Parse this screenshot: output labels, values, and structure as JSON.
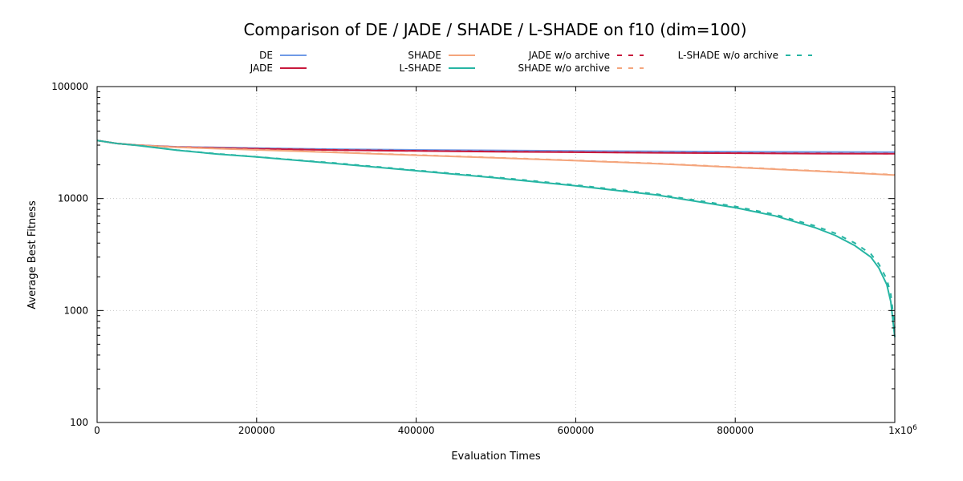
{
  "chart_data": {
    "type": "line",
    "title": "Comparison of DE / JADE / SHADE / L-SHADE on f10 (dim=100)",
    "xlabel": "Evaluation Times",
    "ylabel": "Average Best Fitness",
    "xlim": [
      0,
      1000000
    ],
    "ylim": [
      100,
      100000
    ],
    "yscale": "log",
    "grid": true,
    "legend_position": "top",
    "x_ticks": [
      "0",
      "200000",
      "400000",
      "600000",
      "800000"
    ],
    "x_tick_last": {
      "base": "1x10",
      "exp": "6"
    },
    "y_ticks": [
      "100",
      "1000",
      "10000",
      "100000"
    ],
    "series": [
      {
        "name": "DE",
        "color": "#6f9ae6",
        "style": "solid",
        "points": [
          [
            0,
            33000
          ],
          [
            25000,
            31000
          ],
          [
            50000,
            30000
          ],
          [
            100000,
            29000
          ],
          [
            200000,
            28200
          ],
          [
            300000,
            27600
          ],
          [
            400000,
            27200
          ],
          [
            500000,
            26900
          ],
          [
            600000,
            26600
          ],
          [
            700000,
            26400
          ],
          [
            800000,
            26200
          ],
          [
            900000,
            26100
          ],
          [
            1000000,
            26000
          ]
        ]
      },
      {
        "name": "JADE",
        "color": "#c8193c",
        "style": "solid",
        "points": [
          [
            0,
            33000
          ],
          [
            25000,
            31000
          ],
          [
            50000,
            30000
          ],
          [
            100000,
            28800
          ],
          [
            200000,
            27800
          ],
          [
            300000,
            27100
          ],
          [
            400000,
            26600
          ],
          [
            500000,
            26200
          ],
          [
            600000,
            25900
          ],
          [
            700000,
            25600
          ],
          [
            800000,
            25400
          ],
          [
            900000,
            25200
          ],
          [
            1000000,
            25100
          ]
        ]
      },
      {
        "name": "SHADE",
        "color": "#f4a57c",
        "style": "solid",
        "points": [
          [
            0,
            33000
          ],
          [
            25000,
            31000
          ],
          [
            50000,
            30000
          ],
          [
            100000,
            28700
          ],
          [
            200000,
            27200
          ],
          [
            300000,
            25800
          ],
          [
            400000,
            24400
          ],
          [
            500000,
            23100
          ],
          [
            600000,
            21800
          ],
          [
            700000,
            20500
          ],
          [
            800000,
            19000
          ],
          [
            900000,
            17600
          ],
          [
            1000000,
            16200
          ]
        ]
      },
      {
        "name": "L-SHADE",
        "color": "#26b5a3",
        "style": "solid",
        "points": [
          [
            0,
            33000
          ],
          [
            25000,
            31000
          ],
          [
            50000,
            29800
          ],
          [
            100000,
            27000
          ],
          [
            150000,
            25000
          ],
          [
            200000,
            23500
          ],
          [
            300000,
            20500
          ],
          [
            400000,
            17700
          ],
          [
            500000,
            15300
          ],
          [
            600000,
            13000
          ],
          [
            700000,
            10800
          ],
          [
            800000,
            8300
          ],
          [
            850000,
            7000
          ],
          [
            900000,
            5500
          ],
          [
            925000,
            4700
          ],
          [
            950000,
            3800
          ],
          [
            970000,
            3000
          ],
          [
            980000,
            2400
          ],
          [
            990000,
            1700
          ],
          [
            995000,
            1200
          ],
          [
            1000000,
            580
          ]
        ]
      },
      {
        "name": "JADE w/o archive",
        "color": "#c8193c",
        "style": "dashed",
        "points": [
          [
            0,
            33000
          ],
          [
            25000,
            31000
          ],
          [
            50000,
            30000
          ],
          [
            100000,
            28900
          ],
          [
            200000,
            27900
          ],
          [
            300000,
            27200
          ],
          [
            400000,
            26700
          ],
          [
            500000,
            26300
          ],
          [
            600000,
            26000
          ],
          [
            700000,
            25700
          ],
          [
            800000,
            25500
          ],
          [
            900000,
            25300
          ],
          [
            1000000,
            25200
          ]
        ]
      },
      {
        "name": "SHADE w/o archive",
        "color": "#f4a57c",
        "style": "dashed",
        "points": [
          [
            0,
            33000
          ],
          [
            25000,
            31000
          ],
          [
            50000,
            30000
          ],
          [
            100000,
            28800
          ],
          [
            200000,
            27300
          ],
          [
            300000,
            25900
          ],
          [
            400000,
            24500
          ],
          [
            500000,
            23200
          ],
          [
            600000,
            21900
          ],
          [
            700000,
            20600
          ],
          [
            800000,
            19100
          ],
          [
            900000,
            17700
          ],
          [
            1000000,
            16300
          ]
        ]
      },
      {
        "name": "L-SHADE w/o archive",
        "color": "#26b5a3",
        "style": "dashed",
        "points": [
          [
            0,
            33000
          ],
          [
            25000,
            31000
          ],
          [
            50000,
            29900
          ],
          [
            100000,
            27100
          ],
          [
            150000,
            25100
          ],
          [
            200000,
            23600
          ],
          [
            300000,
            20700
          ],
          [
            400000,
            17900
          ],
          [
            500000,
            15500
          ],
          [
            600000,
            13200
          ],
          [
            700000,
            11000
          ],
          [
            800000,
            8500
          ],
          [
            850000,
            7200
          ],
          [
            900000,
            5700
          ],
          [
            925000,
            4900
          ],
          [
            950000,
            4000
          ],
          [
            970000,
            3200
          ],
          [
            980000,
            2600
          ],
          [
            990000,
            1900
          ],
          [
            995000,
            1400
          ],
          [
            1000000,
            700
          ]
        ]
      }
    ]
  }
}
